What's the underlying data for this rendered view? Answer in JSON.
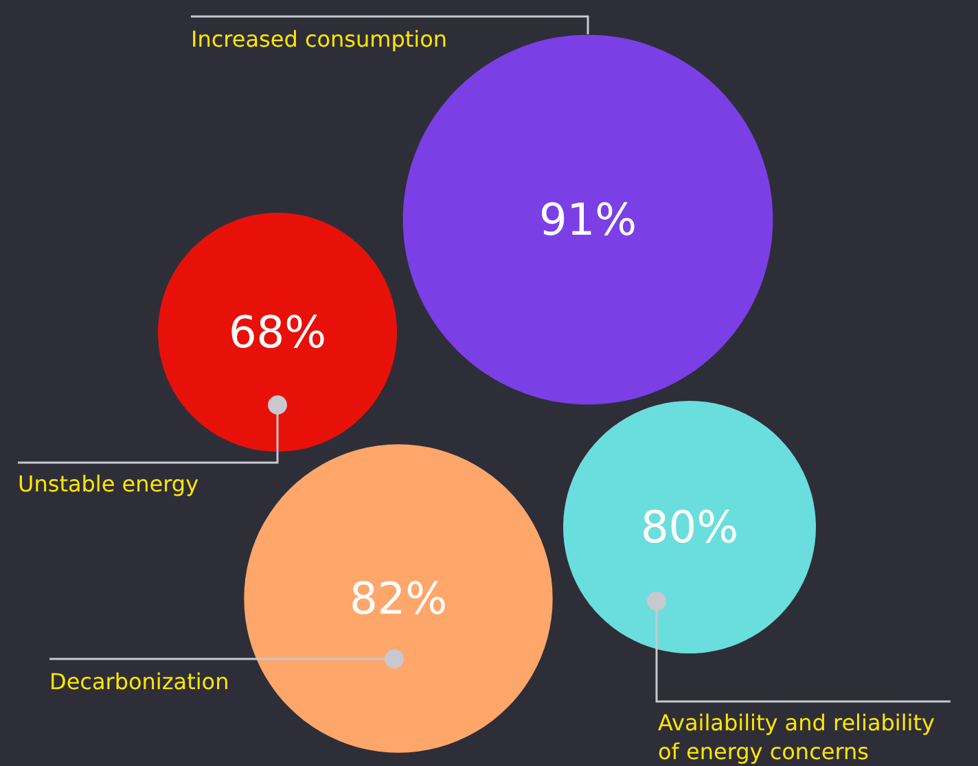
{
  "chart_data": {
    "type": "other",
    "categories": [
      "Increased consumption",
      "Unstable energy",
      "Decarbonization",
      "Availability and reliability\nof energy concerns"
    ],
    "values": [
      91,
      68,
      82,
      80
    ],
    "value_labels": [
      "91%",
      "68%",
      "82%",
      "80%"
    ],
    "colors": [
      "#7b3fe6",
      "#e8110a",
      "#ffa66a",
      "#6adedd"
    ]
  }
}
